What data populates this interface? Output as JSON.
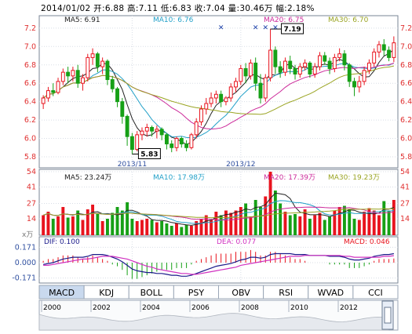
{
  "header": {
    "date": "2014/01/02",
    "open_label": "开:",
    "open": "6.88",
    "high_label": "高:",
    "high": "7.11",
    "low_label": "低:",
    "low": "6.83",
    "close_label": "收:",
    "close": "7.04",
    "volume_label": "量:",
    "volume": "30.46万",
    "change_label": "幅:",
    "change": "2.18%"
  },
  "ma_legend": [
    {
      "label": "MA5: 6.91",
      "color": "#222222"
    },
    {
      "label": "MA10: 6.76",
      "color": "#22a0c8"
    },
    {
      "label": "MA20: 6.75",
      "color": "#cc2a9a"
    },
    {
      "label": "MA30: 6.70",
      "color": "#9aa422"
    }
  ],
  "vol_legend": [
    {
      "label": "MA5: 23.24万",
      "color": "#222222"
    },
    {
      "label": "MA10: 17.98万",
      "color": "#22a0c8"
    },
    {
      "label": "MA20: 17.39万",
      "color": "#cc2a9a"
    },
    {
      "label": "MA30: 19.23万",
      "color": "#9aa422"
    }
  ],
  "macd_legend": {
    "dif": "DIF: 0.100",
    "dea": "DEA: 0.077",
    "macd": "MACD: 0.046"
  },
  "macd_unit": "x万",
  "tabs": [
    "MACD",
    "KDJ",
    "BOLL",
    "PSY",
    "OBV",
    "RSI",
    "WVAD",
    "CCI"
  ],
  "active_tab": "MACD",
  "timeline_years": [
    "2000",
    "2002",
    "2004",
    "2006",
    "2008",
    "2010",
    "2012"
  ],
  "chart_data": {
    "type": "candlestick",
    "price_axis": {
      "ticks": [
        5.8,
        6.0,
        6.2,
        6.4,
        6.6,
        6.8,
        7.0,
        7.2
      ],
      "ylim": [
        5.8,
        7.25
      ]
    },
    "volume_axis": {
      "ticks": [
        54,
        41,
        27,
        14
      ],
      "ylim": [
        0,
        54
      ],
      "unit": "万"
    },
    "macd_axis": {
      "ticks": [
        0.171,
        0.0,
        -0.171
      ],
      "tick_labels": [
        "0.171",
        "0.000",
        "-0.171"
      ]
    },
    "x_labels": [
      "2013/11",
      "2013/12"
    ],
    "annotations": [
      {
        "label": "5.83",
        "type": "low"
      },
      {
        "label": "7.19",
        "type": "high"
      }
    ],
    "candles": [
      [
        6.38,
        6.44,
        6.32,
        6.47
      ],
      [
        6.44,
        6.52,
        6.4,
        6.56
      ],
      [
        6.52,
        6.5,
        6.46,
        6.6
      ],
      [
        6.5,
        6.62,
        6.48,
        6.66
      ],
      [
        6.62,
        6.72,
        6.58,
        6.76
      ],
      [
        6.72,
        6.68,
        6.6,
        6.78
      ],
      [
        6.68,
        6.74,
        6.62,
        6.78
      ],
      [
        6.74,
        6.6,
        6.55,
        6.8
      ],
      [
        6.6,
        6.66,
        6.52,
        6.7
      ],
      [
        6.66,
        6.88,
        6.62,
        6.92
      ],
      [
        6.88,
        6.92,
        6.8,
        6.98
      ],
      [
        6.92,
        6.78,
        6.72,
        6.94
      ],
      [
        6.78,
        6.84,
        6.7,
        6.88
      ],
      [
        6.84,
        6.64,
        6.58,
        6.86
      ],
      [
        6.64,
        6.54,
        6.5,
        6.68
      ],
      [
        6.54,
        6.4,
        6.34,
        6.56
      ],
      [
        6.4,
        6.24,
        6.16,
        6.44
      ],
      [
        6.24,
        6.02,
        5.92,
        6.26
      ],
      [
        6.02,
        5.88,
        5.83,
        6.06
      ],
      [
        5.88,
        6.04,
        5.86,
        6.08
      ],
      [
        6.04,
        6.08,
        5.98,
        6.12
      ],
      [
        6.08,
        6.12,
        6.02,
        6.16
      ],
      [
        6.12,
        6.08,
        6.02,
        6.14
      ],
      [
        6.08,
        6.1,
        6.0,
        6.14
      ],
      [
        6.1,
        6.04,
        5.98,
        6.12
      ],
      [
        6.04,
        5.94,
        5.88,
        6.06
      ],
      [
        5.94,
        5.9,
        5.85,
        5.98
      ],
      [
        5.9,
        6.0,
        5.86,
        6.02
      ],
      [
        6.0,
        5.94,
        5.9,
        6.02
      ],
      [
        5.94,
        5.9,
        5.86,
        5.98
      ],
      [
        5.9,
        6.04,
        5.88,
        6.06
      ],
      [
        6.04,
        6.18,
        6.0,
        6.22
      ],
      [
        6.18,
        6.32,
        6.14,
        6.36
      ],
      [
        6.32,
        6.38,
        6.26,
        6.44
      ],
      [
        6.38,
        6.44,
        6.34,
        6.5
      ],
      [
        6.44,
        6.48,
        6.38,
        6.52
      ],
      [
        6.48,
        6.4,
        6.34,
        6.52
      ],
      [
        6.4,
        6.44,
        6.36,
        6.46
      ],
      [
        6.44,
        6.56,
        6.4,
        6.6
      ],
      [
        6.56,
        6.62,
        6.5,
        6.66
      ],
      [
        6.62,
        6.76,
        6.58,
        6.8
      ],
      [
        6.76,
        6.68,
        6.6,
        6.82
      ],
      [
        6.68,
        6.82,
        6.64,
        6.86
      ],
      [
        6.82,
        6.6,
        6.52,
        6.88
      ],
      [
        6.6,
        6.44,
        6.38,
        6.7
      ],
      [
        6.44,
        6.66,
        6.4,
        6.7
      ],
      [
        6.66,
        6.96,
        6.62,
        7.19
      ],
      [
        6.96,
        6.78,
        6.7,
        7.0
      ],
      [
        6.78,
        6.72,
        6.66,
        6.84
      ],
      [
        6.72,
        6.84,
        6.68,
        6.88
      ],
      [
        6.84,
        6.76,
        6.7,
        6.9
      ],
      [
        6.76,
        6.7,
        6.64,
        6.8
      ],
      [
        6.7,
        6.78,
        6.66,
        6.82
      ],
      [
        6.78,
        6.82,
        6.74,
        6.86
      ],
      [
        6.82,
        6.7,
        6.66,
        6.84
      ],
      [
        6.7,
        6.78,
        6.66,
        6.82
      ],
      [
        6.78,
        6.9,
        6.74,
        6.94
      ],
      [
        6.9,
        6.84,
        6.8,
        6.94
      ],
      [
        6.84,
        6.76,
        6.7,
        6.88
      ],
      [
        6.76,
        6.88,
        6.72,
        6.92
      ],
      [
        6.88,
        6.92,
        6.84,
        6.98
      ],
      [
        6.92,
        6.8,
        6.74,
        6.96
      ],
      [
        6.8,
        6.62,
        6.56,
        6.82
      ],
      [
        6.62,
        6.56,
        6.46,
        6.66
      ],
      [
        6.56,
        6.62,
        6.5,
        6.68
      ],
      [
        6.62,
        6.74,
        6.58,
        6.78
      ],
      [
        6.74,
        6.82,
        6.7,
        6.86
      ],
      [
        6.82,
        6.94,
        6.78,
        6.98
      ],
      [
        6.94,
        7.02,
        6.88,
        7.06
      ],
      [
        7.02,
        6.96,
        6.9,
        7.08
      ],
      [
        6.96,
        6.88,
        6.84,
        7.0
      ],
      [
        6.88,
        7.04,
        6.83,
        7.11
      ]
    ],
    "volumes": [
      17,
      20,
      14,
      16,
      24,
      15,
      16,
      21,
      13,
      22,
      26,
      18,
      12,
      14,
      19,
      24,
      21,
      28,
      14,
      12,
      13,
      14,
      13,
      11,
      12,
      10,
      8,
      10,
      7,
      9,
      8,
      12,
      14,
      17,
      13,
      20,
      17,
      21,
      19,
      21,
      24,
      27,
      16,
      30,
      24,
      33,
      54,
      38,
      27,
      20,
      17,
      18,
      16,
      22,
      14,
      17,
      19,
      13,
      16,
      21,
      24,
      25,
      22,
      14,
      13,
      20,
      23,
      21,
      17,
      29,
      21,
      30
    ],
    "macd": {
      "dif": [
        -0.02,
        -0.01,
        0.0,
        0.02,
        0.04,
        0.05,
        0.06,
        0.06,
        0.06,
        0.07,
        0.09,
        0.09,
        0.09,
        0.08,
        0.06,
        0.04,
        0.01,
        -0.03,
        -0.07,
        -0.09,
        -0.1,
        -0.11,
        -0.11,
        -0.12,
        -0.12,
        -0.13,
        -0.14,
        -0.14,
        -0.15,
        -0.15,
        -0.14,
        -0.12,
        -0.1,
        -0.08,
        -0.06,
        -0.04,
        -0.03,
        -0.02,
        -0.01,
        0.01,
        0.03,
        0.04,
        0.06,
        0.06,
        0.05,
        0.06,
        0.09,
        0.1,
        0.1,
        0.1,
        0.1,
        0.09,
        0.09,
        0.09,
        0.08,
        0.08,
        0.08,
        0.08,
        0.07,
        0.07,
        0.07,
        0.06,
        0.04,
        0.03,
        0.03,
        0.04,
        0.05,
        0.07,
        0.08,
        0.09,
        0.09,
        0.1
      ],
      "dea": [
        -0.03,
        -0.03,
        -0.02,
        -0.01,
        0.0,
        0.01,
        0.02,
        0.03,
        0.04,
        0.04,
        0.05,
        0.06,
        0.07,
        0.07,
        0.07,
        0.06,
        0.05,
        0.04,
        0.02,
        0.0,
        -0.02,
        -0.04,
        -0.05,
        -0.07,
        -0.08,
        -0.09,
        -0.1,
        -0.11,
        -0.12,
        -0.12,
        -0.13,
        -0.13,
        -0.12,
        -0.11,
        -0.1,
        -0.09,
        -0.08,
        -0.07,
        -0.06,
        -0.05,
        -0.03,
        -0.02,
        -0.01,
        0.0,
        0.01,
        0.02,
        0.03,
        0.04,
        0.05,
        0.06,
        0.07,
        0.07,
        0.07,
        0.08,
        0.08,
        0.08,
        0.08,
        0.08,
        0.08,
        0.08,
        0.08,
        0.07,
        0.07,
        0.06,
        0.06,
        0.06,
        0.06,
        0.06,
        0.06,
        0.07,
        0.07,
        0.077
      ]
    }
  }
}
